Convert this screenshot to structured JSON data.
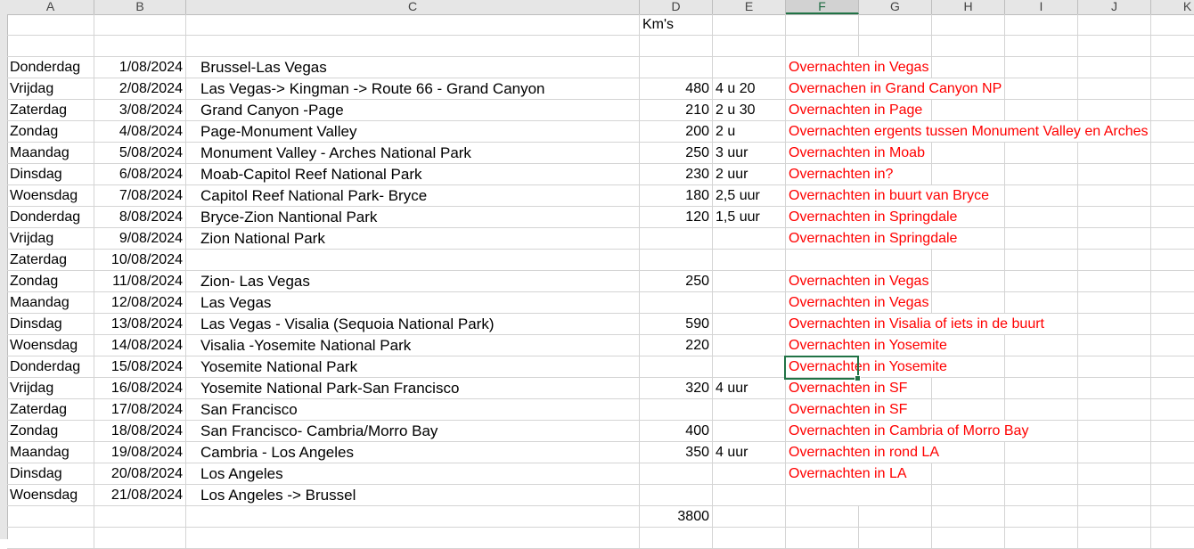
{
  "columns": [
    "A",
    "B",
    "C",
    "D",
    "E",
    "F",
    "G",
    "H",
    "I",
    "J",
    "K"
  ],
  "selected_column": "F",
  "header_row": {
    "D": "Km's"
  },
  "rows": [
    [
      "Donderdag",
      "1/08/2024",
      "Brussel-Las Vegas",
      "",
      "",
      "Overnachten in Vegas"
    ],
    [
      "Vrijdag",
      "2/08/2024",
      "Las Vegas-> Kingman -> Route 66 - Grand Canyon",
      "480",
      "4 u 20",
      "Overnachen in Grand Canyon NP"
    ],
    [
      "Zaterdag",
      "3/08/2024",
      "Grand Canyon -Page",
      "210",
      "2 u 30",
      "Overnachten in Page"
    ],
    [
      "Zondag",
      "4/08/2024",
      "Page-Monument Valley",
      "200",
      "2 u",
      "Overnachten ergents tussen Monument Valley en Arches"
    ],
    [
      "Maandag",
      "5/08/2024",
      "Monument Valley - Arches National Park",
      "250",
      "3 uur",
      "Overnachten in Moab"
    ],
    [
      "Dinsdag",
      "6/08/2024",
      "Moab-Capitol Reef National Park",
      "230",
      "2 uur",
      "Overnachten in?"
    ],
    [
      "Woensdag",
      "7/08/2024",
      "Capitol Reef National Park- Bryce",
      "180",
      "2,5 uur",
      "Overnachten in buurt van Bryce"
    ],
    [
      "Donderdag",
      "8/08/2024",
      "Bryce-Zion Nantional Park",
      "120",
      "1,5 uur",
      "Overnachten in Springdale"
    ],
    [
      "Vrijdag",
      "9/08/2024",
      "Zion National Park",
      "",
      "",
      "Overnachten in Springdale"
    ],
    [
      "Zaterdag",
      "10/08/2024",
      "",
      "",
      "",
      ""
    ],
    [
      "Zondag",
      "11/08/2024",
      "Zion- Las Vegas",
      "250",
      "",
      "Overnachten in Vegas"
    ],
    [
      "Maandag",
      "12/08/2024",
      "Las Vegas",
      "",
      "",
      "Overnachten in Vegas"
    ],
    [
      "Dinsdag",
      "13/08/2024",
      "Las Vegas - Visalia (Sequoia National Park)",
      "590",
      "",
      "Overnachten in Visalia of iets in de buurt"
    ],
    [
      "Woensdag",
      "14/08/2024",
      "Visalia -Yosemite National Park",
      "220",
      "",
      "Overnachten in Yosemite"
    ],
    [
      "Donderdag",
      "15/08/2024",
      "Yosemite National Park",
      "",
      "",
      "Overnachten in Yosemite"
    ],
    [
      "Vrijdag",
      "16/08/2024",
      "Yosemite National Park-San Francisco",
      "320",
      "4 uur",
      "Overnachten in SF"
    ],
    [
      "Zaterdag",
      "17/08/2024",
      "San Francisco",
      "",
      "",
      "Overnachten in SF"
    ],
    [
      "Zondag",
      "18/08/2024",
      "San Francisco- Cambria/Morro Bay",
      "400",
      "",
      "Overnachten in Cambria of Morro Bay"
    ],
    [
      "Maandag",
      "19/08/2024",
      "Cambria - Los Angeles",
      "350",
      "4 uur",
      "Overnachten in rond LA"
    ],
    [
      "Dinsdag",
      "20/08/2024",
      "Los Angeles",
      "",
      "",
      "Overnachten in LA"
    ],
    [
      "Woensdag",
      "21/08/2024",
      "Los Angeles -> Brussel",
      "",
      "",
      ""
    ]
  ],
  "total_km": "3800",
  "colors": {
    "note_text": "#ff0000",
    "selection": "#217346"
  }
}
